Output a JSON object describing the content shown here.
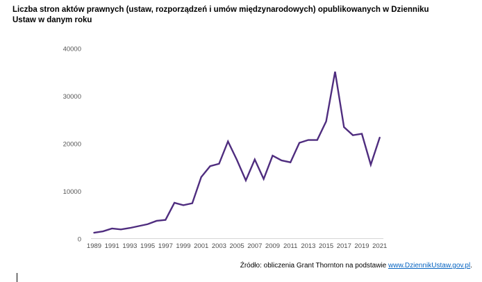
{
  "title": "Liczba stron aktów prawnych (ustaw, rozporządzeń i umów międzynarodowych) opublikowanych w Dzienniku Ustaw w danym roku",
  "footer": {
    "prefix": "Źródło: obliczenia Grant Thornton na podstawie ",
    "link_text": "www.DziennikUstaw.gov.pl",
    "suffix": "."
  },
  "colors": {
    "line": "#4f2d7f",
    "axis": "#d6d6d6",
    "tick_text": "#555555",
    "link": "#0563c1"
  },
  "chart_data": {
    "type": "line",
    "title": "Liczba stron aktów prawnych (ustaw, rozporządzeń i umów międzynarodowych) opublikowanych w Dzienniku Ustaw w danym roku",
    "xlabel": "",
    "ylabel": "",
    "x": [
      1989,
      1990,
      1991,
      1992,
      1993,
      1994,
      1995,
      1996,
      1997,
      1998,
      1999,
      2000,
      2001,
      2002,
      2003,
      2004,
      2005,
      2006,
      2007,
      2008,
      2009,
      2010,
      2011,
      2012,
      2013,
      2014,
      2015,
      2016,
      2017,
      2018,
      2019,
      2020,
      2021
    ],
    "values": [
      1300,
      1600,
      2200,
      2000,
      2300,
      2700,
      3100,
      3800,
      4000,
      7600,
      7100,
      7500,
      13000,
      15300,
      15800,
      20500,
      16600,
      12300,
      16700,
      12600,
      17500,
      16500,
      16100,
      20200,
      20800,
      20800,
      24700,
      35150,
      23500,
      21800,
      22100,
      15600,
      21300
    ],
    "series_name": "Liczba stron aktów prawnych",
    "ylim": [
      0,
      40000
    ],
    "yticks": [
      0,
      10000,
      20000,
      30000,
      40000
    ],
    "ytick_labels": [
      "0",
      "10000",
      "20000",
      "30000",
      "40000"
    ],
    "xtick_labels": [
      "1989",
      "1991",
      "1993",
      "1995",
      "1997",
      "1999",
      "2001",
      "2003",
      "2005",
      "2007",
      "2009",
      "2011",
      "2013",
      "2015",
      "2017",
      "2019",
      "2021"
    ],
    "grid": false,
    "legend_position": "none"
  }
}
